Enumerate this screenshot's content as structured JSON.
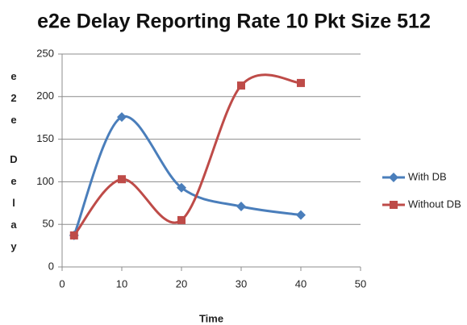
{
  "chart_data": {
    "type": "scatter",
    "title": "e2e Delay Reporting Rate 10 Pkt Size 512",
    "x_label": "Time",
    "y_label": "e2e Delay",
    "x": [
      2,
      10,
      20,
      30,
      40
    ],
    "series": [
      {
        "name": "With DB",
        "color": "#4a7ebb",
        "marker": "diamond",
        "values": [
          37,
          176,
          93,
          71,
          61
        ]
      },
      {
        "name": "Without DB",
        "color": "#be4b48",
        "marker": "square",
        "values": [
          37,
          103,
          55,
          213,
          216
        ]
      }
    ],
    "xlim": [
      0,
      50
    ],
    "xticks": [
      0,
      10,
      20,
      30,
      40,
      50
    ],
    "ylim": [
      0,
      250
    ],
    "yticks": [
      0,
      50,
      100,
      150,
      200,
      250
    ],
    "grid": true,
    "smooth": true,
    "legend": "right"
  }
}
